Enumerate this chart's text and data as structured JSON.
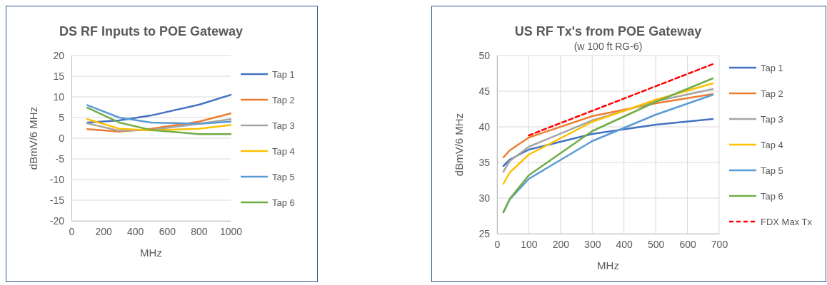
{
  "chart_data": [
    {
      "type": "line",
      "title": "DS RF Inputs to POE Gateway",
      "xlabel": "MHz",
      "ylabel": "dBmV/6 MHz",
      "x": [
        100,
        300,
        500,
        800,
        1000
      ],
      "xlim": [
        0,
        1000
      ],
      "xticks": [
        0,
        200,
        400,
        600,
        800,
        1000
      ],
      "ylim": [
        -20,
        20
      ],
      "yticks": [
        -20,
        -15,
        -10,
        -5,
        0,
        5,
        10,
        15,
        20
      ],
      "grid": "y",
      "legend": "right",
      "marker": "none",
      "series": [
        {
          "name": "Tap 1",
          "color": "#4472c4",
          "values": [
            3.8,
            4.3,
            5.5,
            8.1,
            10.5
          ]
        },
        {
          "name": "Tap 2",
          "color": "#ed7d31",
          "values": [
            2.2,
            1.6,
            2.3,
            4.0,
            6.0
          ]
        },
        {
          "name": "Tap 3",
          "color": "#a5a5a5",
          "values": [
            3.6,
            1.8,
            2.0,
            3.5,
            4.6
          ]
        },
        {
          "name": "Tap 4",
          "color": "#ffc000",
          "values": [
            4.6,
            2.3,
            1.9,
            2.3,
            3.2
          ]
        },
        {
          "name": "Tap 5",
          "color": "#5b9bd5",
          "values": [
            8.0,
            5.0,
            3.8,
            3.5,
            4.0
          ]
        },
        {
          "name": "Tap 6",
          "color": "#70ad47",
          "values": [
            7.4,
            3.8,
            2.0,
            1.0,
            1.0
          ]
        }
      ]
    },
    {
      "type": "line",
      "title": "US RF Tx's from POE Gateway",
      "subtitle": "(w 100 ft RG-6)",
      "xlabel": "MHz",
      "ylabel": "dBmV/6 MHz",
      "x": [
        20,
        40,
        100,
        300,
        500,
        680
      ],
      "xlim": [
        0,
        700
      ],
      "xticks": [
        0,
        100,
        200,
        300,
        400,
        500,
        600,
        700
      ],
      "ylim": [
        25,
        50
      ],
      "yticks": [
        25,
        30,
        35,
        40,
        45,
        50
      ],
      "grid": true,
      "legend": "right",
      "marker": "none",
      "series": [
        {
          "name": "Tap 1",
          "color": "#4472c4",
          "values": [
            34.5,
            35.4,
            36.8,
            39.0,
            40.3,
            41.1
          ]
        },
        {
          "name": "Tap 2",
          "color": "#ed7d31",
          "values": [
            35.7,
            36.7,
            38.5,
            41.5,
            43.3,
            44.6
          ]
        },
        {
          "name": "Tap 3",
          "color": "#a5a5a5",
          "values": [
            33.7,
            35.2,
            37.2,
            40.9,
            43.6,
            45.3
          ]
        },
        {
          "name": "Tap 4",
          "color": "#ffc000",
          "values": [
            32.0,
            33.6,
            36.1,
            40.7,
            43.8,
            46.1
          ]
        },
        {
          "name": "Tap 5",
          "color": "#5b9bd5",
          "values": [
            28.0,
            29.8,
            32.7,
            38.0,
            41.7,
            44.5
          ]
        },
        {
          "name": "Tap 6",
          "color": "#70ad47",
          "values": [
            28.0,
            29.9,
            33.2,
            39.4,
            43.5,
            46.8
          ]
        },
        {
          "name": "FDX Max Tx",
          "color": "#ff0000",
          "x": [
            100,
            680
          ],
          "values": [
            38.8,
            48.8
          ],
          "line_style": "dashed"
        }
      ]
    }
  ]
}
